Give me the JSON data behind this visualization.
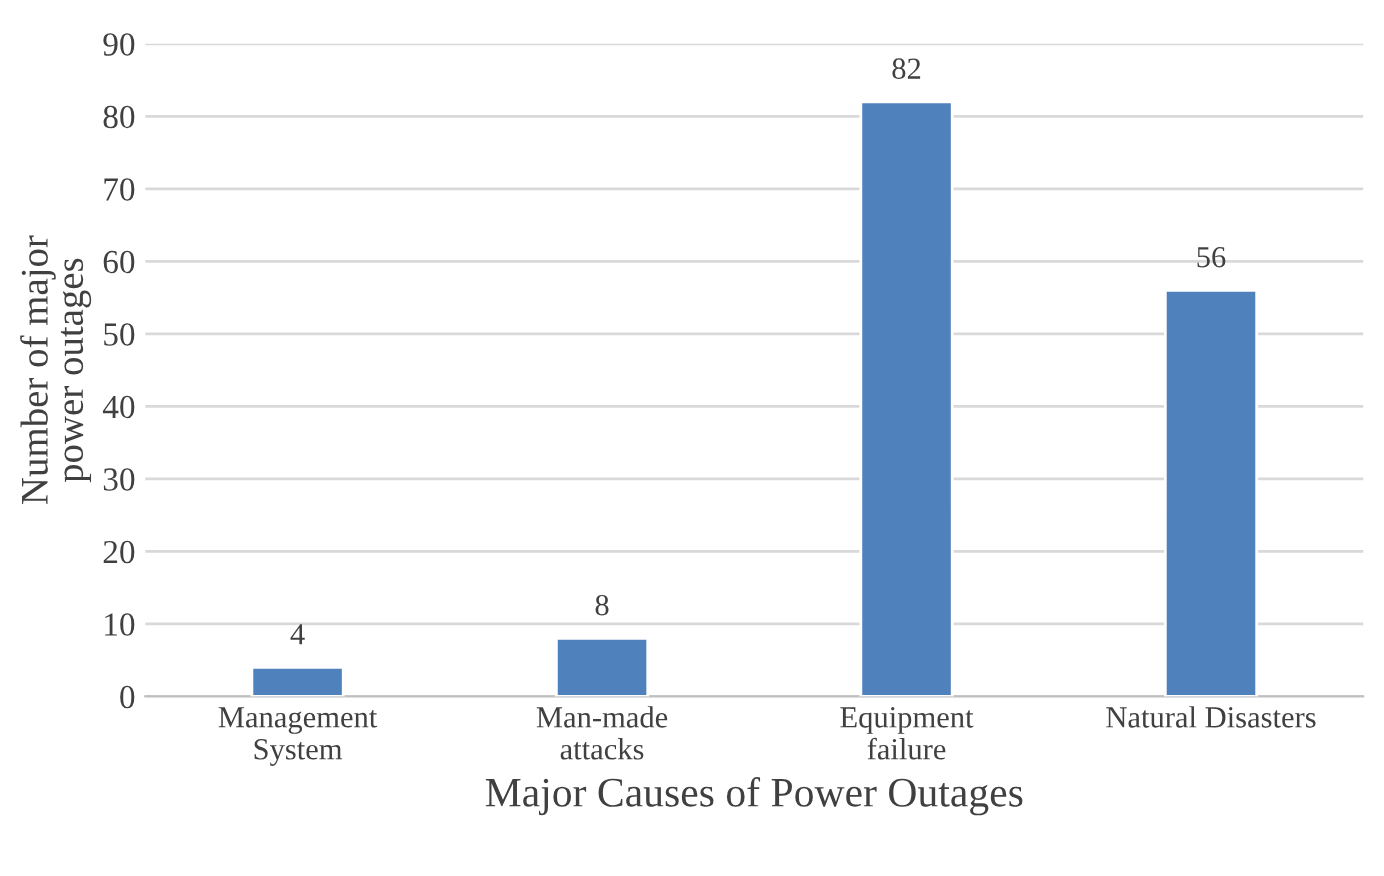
{
  "chart_data": {
    "type": "bar",
    "xlabel": "Major Causes of Power Outages",
    "ylabel": "Number of major\npower outages",
    "categories": [
      "Management\nSystem",
      "Man-made\nattacks",
      "Equipment\nfailure",
      "Natural Disasters"
    ],
    "values": [
      4,
      8,
      82,
      56
    ],
    "color": "#4f81bd",
    "data_labels": true,
    "ylim": [
      0,
      90
    ],
    "yticks": [
      0,
      10,
      20,
      30,
      40,
      50,
      60,
      70,
      80,
      90
    ],
    "grid": "y",
    "legend": false
  }
}
